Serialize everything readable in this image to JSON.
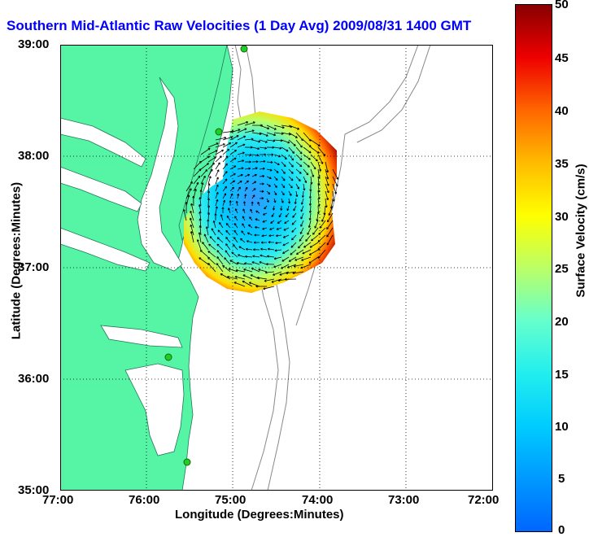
{
  "title": "Southern Mid-Atlantic Raw Velocities (1 Day Avg) 2009/08/31 1400 GMT",
  "x_axis": {
    "label": "Longitude (Degrees:Minutes)",
    "ticks": [
      "77:00",
      "76:00",
      "75:00",
      "74:00",
      "73:00",
      "72:00"
    ]
  },
  "y_axis": {
    "label": "Latitude (Degrees:Minutes)",
    "ticks": [
      "39:00",
      "38:00",
      "37:00",
      "36:00",
      "35:00"
    ]
  },
  "colorbar": {
    "label": "Surface Velocity (cm/s)",
    "ticks": [
      "50",
      "45",
      "40",
      "35",
      "30",
      "25",
      "20",
      "15",
      "10",
      "5",
      "0"
    ]
  },
  "map": {
    "land_color": "#55f5a5",
    "ocean_color": "#ffffff",
    "grid": "dotted",
    "station_color": "#22cc22"
  }
}
